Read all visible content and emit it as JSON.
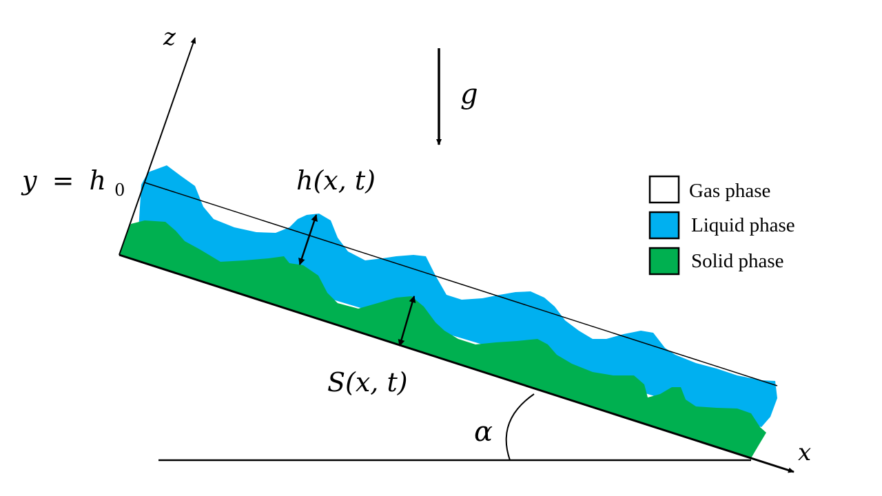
{
  "labels": {
    "z_axis": "z",
    "x_axis": "x",
    "gravity": "g",
    "y_eq_var": "y",
    "y_eq_sign": "=",
    "y_eq_h": "h",
    "y_eq_sub": "0",
    "film_height": "h(x, t)",
    "solid_height": "S(x, t)",
    "angle": "α"
  },
  "legend": {
    "items": [
      {
        "label": "Gas phase",
        "color": "#ffffff"
      },
      {
        "label": "Liquid phase",
        "color": "#00b0f0"
      },
      {
        "label": "Solid phase",
        "color": "#00b050"
      }
    ]
  },
  "colors": {
    "liquid": "#00b0f0",
    "solid": "#00b050",
    "gas": "#ffffff",
    "line": "#000000"
  }
}
